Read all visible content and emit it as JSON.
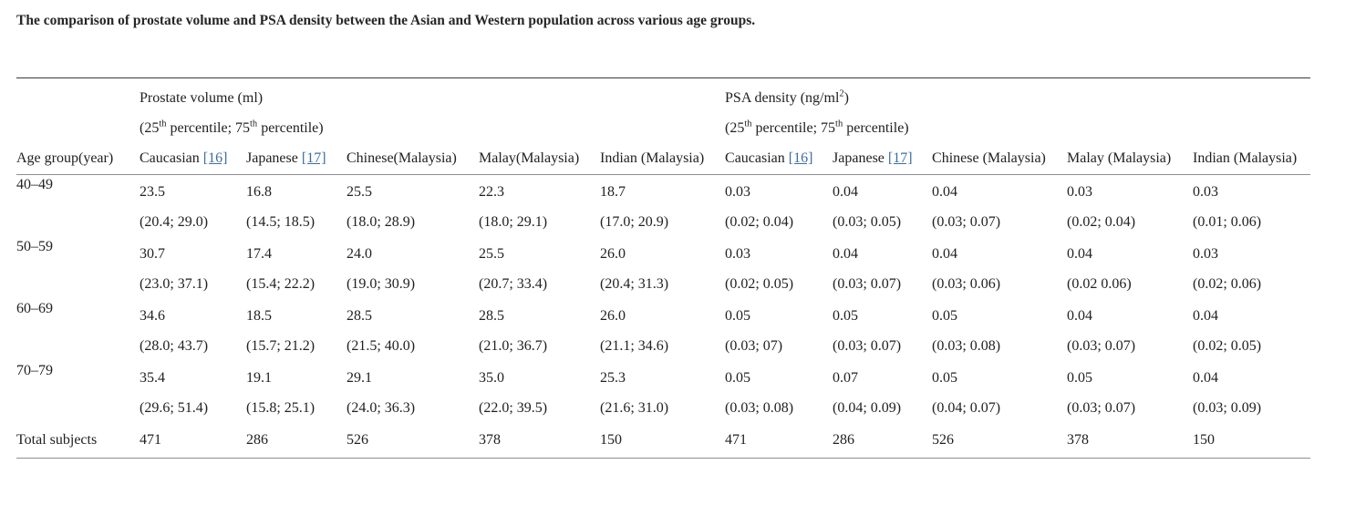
{
  "page": {
    "title": "The comparison of prostate volume and PSA density between the Asian and Western population across various age groups."
  },
  "colors": {
    "text": "#212121",
    "link": "#3c6e9e",
    "rule_dark": "#3a3a3a",
    "rule_light": "#8f8f8f"
  },
  "table": {
    "age_header": "Age group(year)",
    "pv_group": {
      "title": "Prostate volume (ml)"
    },
    "psa_group": {
      "title_pre": "PSA density (ng/ml",
      "title_sup": "2",
      "title_post": ")"
    },
    "subtitle": {
      "p1": "(25",
      "s1": "th",
      "p2": " percentile; 75",
      "s2": "th",
      "p3": " percentile)"
    },
    "pv_columns": [
      {
        "label": "Caucasian",
        "ref": "[16]"
      },
      {
        "label": "Japanese",
        "ref": "[17]"
      },
      {
        "label": "Chinese(Malaysia)"
      },
      {
        "label": "Malay(Malaysia)"
      },
      {
        "label": "Indian (Malaysia)"
      }
    ],
    "psa_columns": [
      {
        "label": "Caucasian",
        "ref": "[16]"
      },
      {
        "label": "Japanese",
        "ref": "[17]"
      },
      {
        "label": "Chinese (Malaysia)"
      },
      {
        "label": "Malay (Malaysia)"
      },
      {
        "label": "Indian (Malaysia)"
      }
    ],
    "rows": [
      {
        "age": "40–49",
        "pv": [
          [
            "23.5",
            "(20.4; 29.0)"
          ],
          [
            "16.8",
            "(14.5; 18.5)"
          ],
          [
            "25.5",
            "(18.0; 28.9)"
          ],
          [
            "22.3",
            "(18.0; 29.1)"
          ],
          [
            "18.7",
            "(17.0; 20.9)"
          ]
        ],
        "psa": [
          [
            "0.03",
            "(0.02; 0.04)"
          ],
          [
            "0.04",
            "(0.03; 0.05)"
          ],
          [
            "0.04",
            "(0.03; 0.07)"
          ],
          [
            "0.03",
            "(0.02; 0.04)"
          ],
          [
            "0.03",
            "(0.01; 0.06)"
          ]
        ]
      },
      {
        "age": "50–59",
        "pv": [
          [
            "30.7",
            "(23.0; 37.1)"
          ],
          [
            "17.4",
            "(15.4; 22.2)"
          ],
          [
            "24.0",
            "(19.0; 30.9)"
          ],
          [
            "25.5",
            "(20.7; 33.4)"
          ],
          [
            "26.0",
            "(20.4; 31.3)"
          ]
        ],
        "psa": [
          [
            "0.03",
            "(0.02; 0.05)"
          ],
          [
            "0.04",
            "(0.03; 0.07)"
          ],
          [
            "0.04",
            "(0.03; 0.06)"
          ],
          [
            "0.04",
            "(0.02 0.06)"
          ],
          [
            "0.03",
            "(0.02; 0.06)"
          ]
        ]
      },
      {
        "age": "60–69",
        "pv": [
          [
            "34.6",
            "(28.0; 43.7)"
          ],
          [
            "18.5",
            "(15.7; 21.2)"
          ],
          [
            "28.5",
            "(21.5; 40.0)"
          ],
          [
            "28.5",
            "(21.0; 36.7)"
          ],
          [
            "26.0",
            "(21.1; 34.6)"
          ]
        ],
        "psa": [
          [
            "0.05",
            "(0.03; 07)"
          ],
          [
            "0.05",
            "(0.03; 0.07)"
          ],
          [
            "0.05",
            "(0.03; 0.08)"
          ],
          [
            "0.04",
            "(0.03; 0.07)"
          ],
          [
            "0.04",
            "(0.02; 0.05)"
          ]
        ]
      },
      {
        "age": "70–79",
        "pv": [
          [
            "35.4",
            "(29.6; 51.4)"
          ],
          [
            "19.1",
            "(15.8; 25.1)"
          ],
          [
            "29.1",
            "(24.0; 36.3)"
          ],
          [
            "35.0",
            "(22.0; 39.5)"
          ],
          [
            "25.3",
            "(21.6; 31.0)"
          ]
        ],
        "psa": [
          [
            "0.05",
            "(0.03; 0.08)"
          ],
          [
            "0.07",
            "(0.04; 0.09)"
          ],
          [
            "0.05",
            "(0.04; 0.07)"
          ],
          [
            "0.05",
            "(0.03; 0.07)"
          ],
          [
            "0.04",
            "(0.03; 0.09)"
          ]
        ]
      }
    ],
    "total": {
      "label": "Total subjects",
      "values": [
        "471",
        "286",
        "526",
        "378",
        "150",
        "471",
        "286",
        "526",
        "378",
        "150"
      ]
    }
  }
}
